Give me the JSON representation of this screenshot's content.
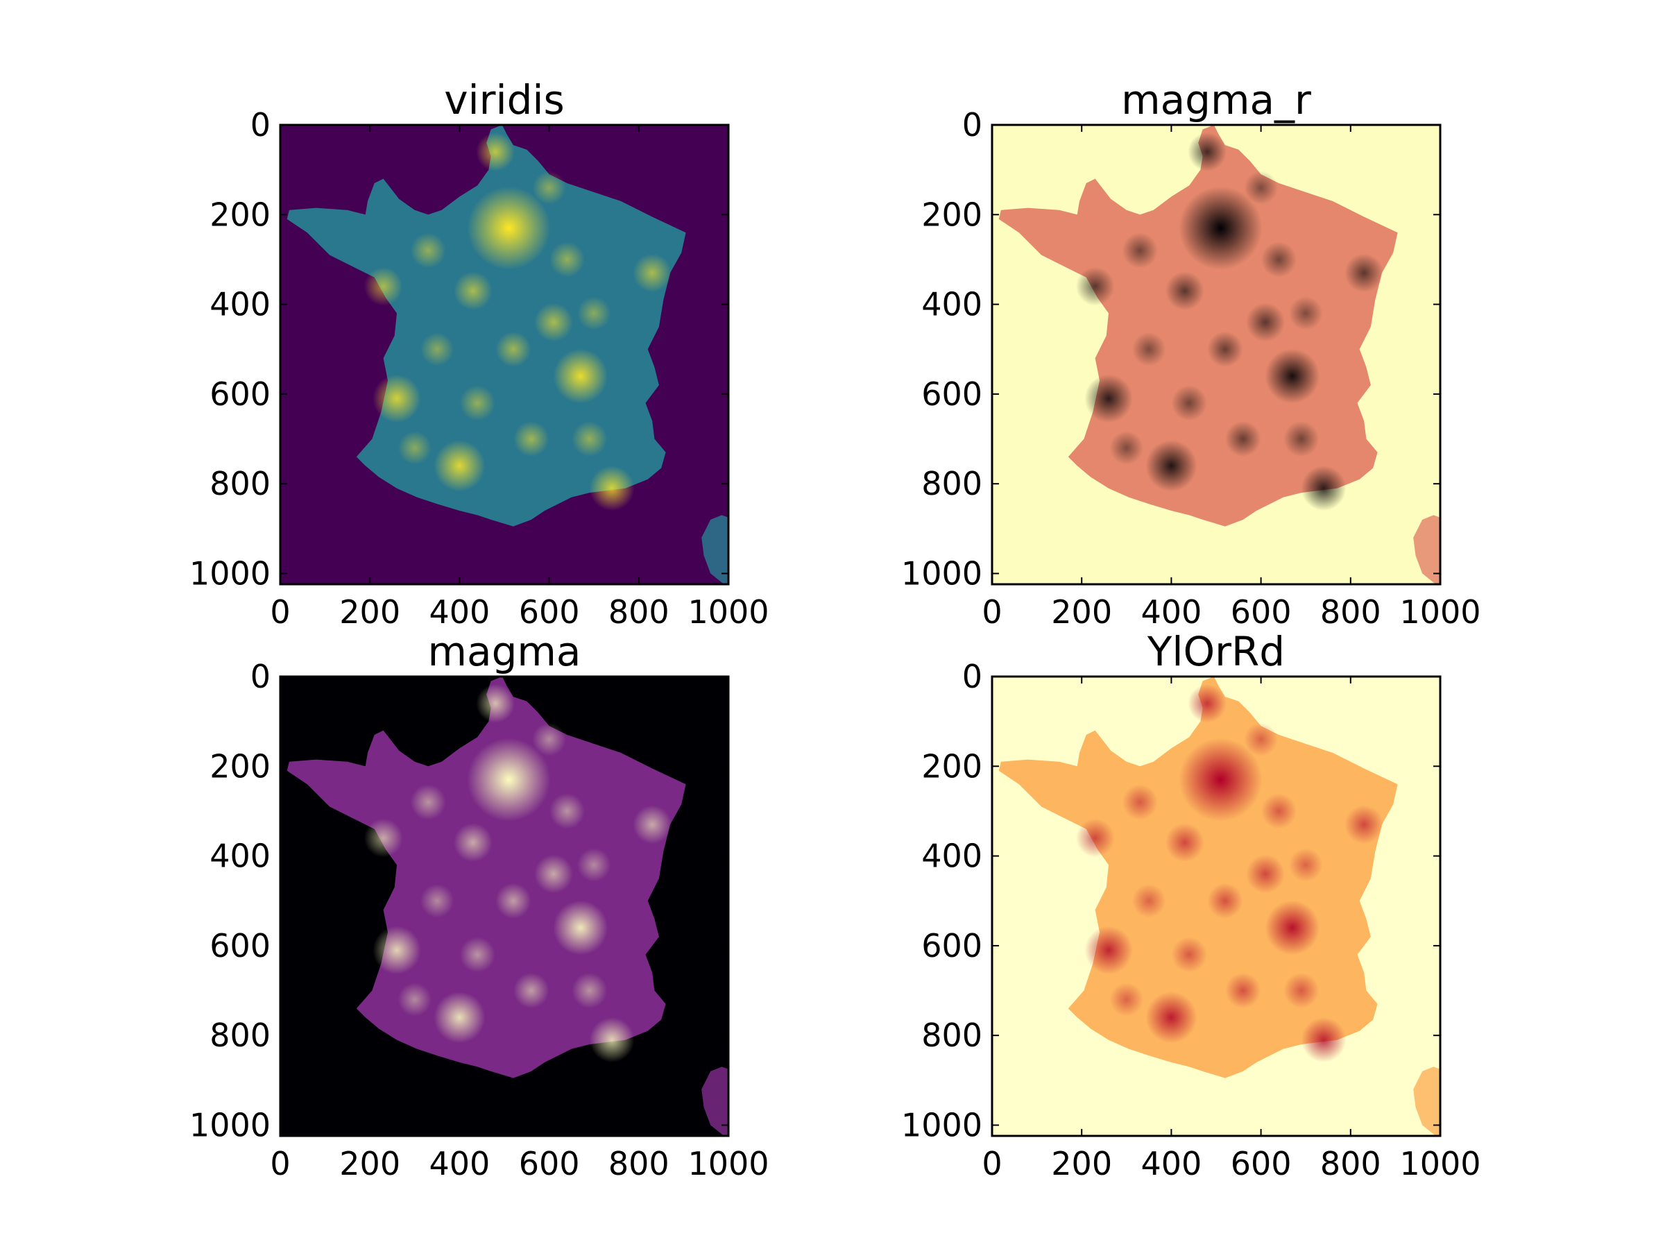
{
  "chart_data": [
    {
      "type": "heatmap",
      "title": "viridis",
      "colormap": "viridis",
      "subject": "population density map of France",
      "xlim": [
        0,
        1000
      ],
      "ylim": [
        1024,
        0
      ],
      "xticks": [
        0,
        200,
        400,
        600,
        800,
        1000
      ],
      "xtick_labels": [
        "0",
        "200",
        "400",
        "600",
        "800",
        "1000"
      ],
      "yticks": [
        0,
        200,
        400,
        600,
        800,
        1000
      ],
      "ytick_labels": [
        "0",
        "200",
        "400",
        "600",
        "800",
        "1000"
      ],
      "background_color": "#440154",
      "land_color": "#2a788e",
      "hotspot_color": "#fde725"
    },
    {
      "type": "heatmap",
      "title": "magma_r",
      "colormap": "magma_r",
      "subject": "population density map of France",
      "xlim": [
        0,
        1000
      ],
      "ylim": [
        1024,
        0
      ],
      "xticks": [
        0,
        200,
        400,
        600,
        800,
        1000
      ],
      "xtick_labels": [
        "0",
        "200",
        "400",
        "600",
        "800",
        "1000"
      ],
      "yticks": [
        0,
        200,
        400,
        600,
        800,
        1000
      ],
      "ytick_labels": [
        "0",
        "200",
        "400",
        "600",
        "800",
        "1000"
      ],
      "background_color": "#fcfdbf",
      "land_color": "#e4876c",
      "hotspot_color": "#000004"
    },
    {
      "type": "heatmap",
      "title": "magma",
      "colormap": "magma",
      "subject": "population density map of France",
      "xlim": [
        0,
        1000
      ],
      "ylim": [
        1024,
        0
      ],
      "xticks": [
        0,
        200,
        400,
        600,
        800,
        1000
      ],
      "xtick_labels": [
        "0",
        "200",
        "400",
        "600",
        "800",
        "1000"
      ],
      "yticks": [
        0,
        200,
        400,
        600,
        800,
        1000
      ],
      "ytick_labels": [
        "0",
        "200",
        "400",
        "600",
        "800",
        "1000"
      ],
      "background_color": "#000004",
      "land_color": "#7a2a86",
      "hotspot_color": "#fcfdbf"
    },
    {
      "type": "heatmap",
      "title": "YlOrRd",
      "colormap": "YlOrRd",
      "subject": "population density map of France",
      "xlim": [
        0,
        1000
      ],
      "ylim": [
        1024,
        0
      ],
      "xticks": [
        0,
        200,
        400,
        600,
        800,
        1000
      ],
      "xtick_labels": [
        "0",
        "200",
        "400",
        "600",
        "800",
        "1000"
      ],
      "yticks": [
        0,
        200,
        400,
        600,
        800,
        1000
      ],
      "ytick_labels": [
        "0",
        "200",
        "400",
        "600",
        "800",
        "1000"
      ],
      "background_color": "#ffffcc",
      "land_color": "#fdb560",
      "hotspot_color": "#b10026"
    }
  ]
}
